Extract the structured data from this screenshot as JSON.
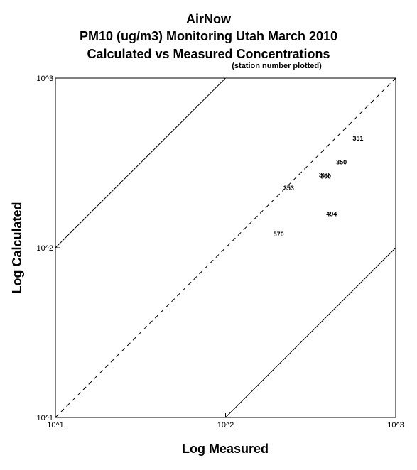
{
  "titles": {
    "line1": "AirNow",
    "line2": "PM10 (ug/m3) Monitoring Utah March 2010",
    "line3": "Calculated vs Measured Concentrations",
    "subtitle": "(station number plotted)"
  },
  "chart_data": {
    "type": "scatter",
    "title": "AirNow PM10 (ug/m3) Monitoring Utah March 2010 Calculated vs Measured Concentrations",
    "subtitle": "(station number plotted)",
    "xlabel": "Log Measured",
    "ylabel": "Log Calculated",
    "xscale": "log",
    "yscale": "log",
    "xlim": [
      10,
      1000
    ],
    "ylim": [
      10,
      1000
    ],
    "x_ticks": [
      {
        "value": 10,
        "label": "10^1"
      },
      {
        "value": 100,
        "label": "10^2"
      },
      {
        "value": 1000,
        "label": "10^3"
      }
    ],
    "y_ticks": [
      {
        "value": 10,
        "label": "10^1"
      },
      {
        "value": 100,
        "label": "10^2"
      },
      {
        "value": 1000,
        "label": "10^3"
      }
    ],
    "reference_lines": [
      {
        "label": "1:1",
        "style": "dashed",
        "factor": 1
      },
      {
        "label": "factor of 10 over",
        "style": "solid",
        "factor": 10
      },
      {
        "label": "factor of 10 under",
        "style": "solid",
        "factor": 0.1
      }
    ],
    "points": [
      {
        "station": "351",
        "x": 600,
        "y": 440
      },
      {
        "station": "350",
        "x": 480,
        "y": 320
      },
      {
        "station": "360",
        "x": 380,
        "y": 268
      },
      {
        "station": "300",
        "x": 388,
        "y": 263
      },
      {
        "station": "353",
        "x": 235,
        "y": 225
      },
      {
        "station": "494",
        "x": 420,
        "y": 158
      },
      {
        "station": "570",
        "x": 205,
        "y": 120
      }
    ],
    "grid": false,
    "legend": "none"
  }
}
